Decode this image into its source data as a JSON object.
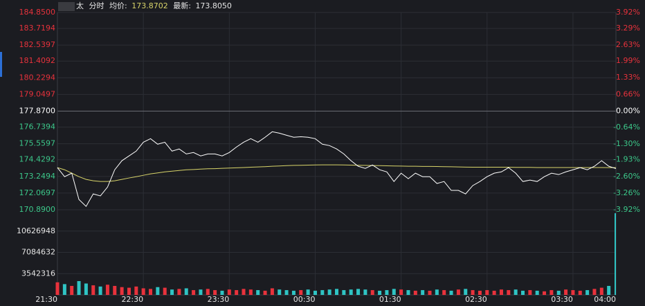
{
  "header": {
    "name": "太",
    "mode": "分时",
    "avg_label": "均价:",
    "avg_value": "173.8702",
    "last_label": "最新:",
    "last_value": "173.8050"
  },
  "chart_data": [
    {
      "type": "line",
      "categories": [
        "21:30",
        null,
        null,
        null,
        null,
        null,
        null,
        null,
        null,
        null,
        null,
        null,
        "22:30",
        null,
        null,
        null,
        null,
        null,
        null,
        null,
        null,
        null,
        null,
        null,
        "23:30",
        null,
        null,
        null,
        null,
        null,
        null,
        null,
        null,
        null,
        null,
        null,
        "00:30",
        null,
        null,
        null,
        null,
        null,
        null,
        null,
        null,
        null,
        null,
        null,
        "01:30",
        null,
        null,
        null,
        null,
        null,
        null,
        null,
        null,
        null,
        null,
        null,
        "02:30",
        null,
        null,
        null,
        null,
        null,
        null,
        null,
        null,
        null,
        null,
        null,
        "03:30",
        null,
        null,
        null,
        null,
        null,
        "04:00"
      ],
      "series": [
        {
          "color": "#ffffff",
          "values": [
            173.87,
            173.23,
            173.48,
            171.62,
            171.13,
            172.01,
            171.87,
            172.5,
            173.72,
            174.36,
            174.7,
            175.04,
            175.67,
            175.92,
            175.53,
            175.67,
            175.04,
            175.19,
            174.84,
            174.94,
            174.7,
            174.84,
            174.84,
            174.7,
            174.94,
            175.33,
            175.67,
            175.92,
            175.67,
            176.02,
            176.41,
            176.31,
            176.16,
            176.02,
            176.06,
            176.02,
            175.92,
            175.53,
            175.43,
            175.19,
            174.84,
            174.36,
            173.97,
            173.82,
            174.06,
            173.72,
            173.57,
            172.89,
            173.48,
            173.09,
            173.48,
            173.23,
            173.23,
            172.75,
            172.89,
            172.26,
            172.26,
            172.01,
            172.6,
            172.89,
            173.23,
            173.48,
            173.57,
            173.87,
            173.48,
            172.89,
            172.99,
            172.89,
            173.23,
            173.48,
            173.38,
            173.57,
            173.72,
            173.87,
            173.72,
            173.97,
            174.36,
            173.97,
            173.805
          ]
        },
        {
          "color": "#d9d56a",
          "values": [
            173.87,
            173.72,
            173.48,
            173.23,
            173.04,
            172.94,
            172.89,
            172.89,
            172.94,
            173.04,
            173.14,
            173.23,
            173.33,
            173.43,
            173.5,
            173.57,
            173.62,
            173.67,
            173.72,
            173.74,
            173.77,
            173.79,
            173.8,
            173.82,
            173.84,
            173.86,
            173.88,
            173.9,
            173.92,
            173.94,
            173.97,
            173.99,
            174.01,
            174.03,
            174.04,
            174.05,
            174.06,
            174.07,
            174.07,
            174.07,
            174.06,
            174.05,
            174.04,
            174.03,
            174.02,
            174.01,
            174.0,
            173.99,
            173.98,
            173.97,
            173.97,
            173.96,
            173.96,
            173.95,
            173.94,
            173.93,
            173.92,
            173.91,
            173.9,
            173.9,
            173.9,
            173.9,
            173.9,
            173.9,
            173.89,
            173.89,
            173.89,
            173.88,
            173.88,
            173.88,
            173.88,
            173.88,
            173.88,
            173.88,
            173.88,
            173.88,
            173.88,
            173.87,
            173.87
          ]
        }
      ],
      "ylim": [
        170.89,
        184.85
      ],
      "yticks": [
        {
          "value": 184.85,
          "label": "184.8500"
        },
        {
          "value": 183.7194,
          "label": "183.7194"
        },
        {
          "value": 182.5397,
          "label": "182.5397"
        },
        {
          "value": 181.4092,
          "label": "181.4092"
        },
        {
          "value": 180.2294,
          "label": "180.2294"
        },
        {
          "value": 179.0497,
          "label": "179.0497"
        },
        {
          "value": 177.87,
          "label": "177.8700"
        },
        {
          "value": 176.7394,
          "label": "176.7394"
        },
        {
          "value": 175.5597,
          "label": "175.5597"
        },
        {
          "value": 174.4292,
          "label": "174.4292"
        },
        {
          "value": 173.2494,
          "label": "173.2494"
        },
        {
          "value": 172.0697,
          "label": "172.0697"
        },
        {
          "value": 170.89,
          "label": "170.8900"
        }
      ],
      "y2lim": [
        -3.92,
        3.92
      ],
      "y2ticks": [
        {
          "value": 3.92,
          "label": "3.92%"
        },
        {
          "value": 3.29,
          "label": "3.29%"
        },
        {
          "value": 2.63,
          "label": "2.63%"
        },
        {
          "value": 1.99,
          "label": "1.99%"
        },
        {
          "value": 1.33,
          "label": "1.33%"
        },
        {
          "value": 0.66,
          "label": "0.66%"
        },
        {
          "value": 0,
          "label": "0.00%"
        },
        {
          "value": -0.64,
          "label": "-0.64%"
        },
        {
          "value": -1.3,
          "label": "-1.30%"
        },
        {
          "value": -1.93,
          "label": "-1.93%"
        },
        {
          "value": -2.6,
          "label": "-2.60%"
        },
        {
          "value": -3.26,
          "label": "-3.26%"
        },
        {
          "value": -3.92,
          "label": "-3.92%"
        }
      ],
      "up_color": "#e8323c",
      "flat_color": "#ffffff",
      "down_color": "#3cc88a",
      "grid": true
    },
    {
      "type": "bar",
      "values": [
        2100000,
        1800000,
        1500000,
        2300000,
        1900000,
        1600000,
        1400000,
        1700000,
        1500000,
        1300000,
        1200000,
        1400000,
        1100000,
        1000000,
        1300000,
        1200000,
        900000,
        1000000,
        1100000,
        800000,
        900000,
        1000000,
        800000,
        700000,
        900000,
        800000,
        1000000,
        900000,
        800000,
        700000,
        1100000,
        900000,
        800000,
        700000,
        800000,
        900000,
        700000,
        800000,
        900000,
        1000000,
        800000,
        900000,
        1000000,
        900000,
        800000,
        700000,
        800000,
        1000000,
        900000,
        800000,
        700000,
        800000,
        700000,
        900000,
        800000,
        700000,
        900000,
        1000000,
        800000,
        700000,
        800000,
        700000,
        900000,
        800000,
        900000,
        700000,
        800000,
        700000,
        600000,
        800000,
        700000,
        900000,
        800000,
        700000,
        800000,
        1000000,
        1200000,
        1500000,
        13600000
      ],
      "ylim": [
        0,
        14169264
      ],
      "yticks": [
        10626948,
        7084632,
        3542316
      ],
      "up_color": "#e8323c",
      "down_color": "#2fc4c4"
    }
  ]
}
